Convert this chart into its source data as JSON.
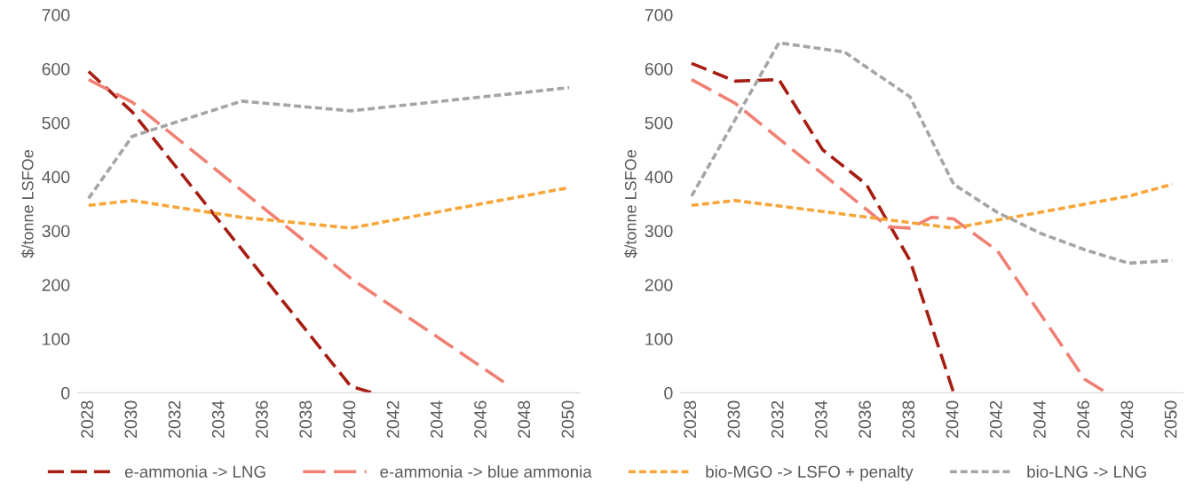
{
  "chart_data": [
    {
      "type": "line",
      "ylabel": "$/tonne LSFOe",
      "xlim": [
        2027.5,
        2050.5
      ],
      "xticks": [
        2028,
        2030,
        2032,
        2034,
        2036,
        2038,
        2040,
        2042,
        2044,
        2046,
        2048,
        2050
      ],
      "ylim": [
        0,
        700
      ],
      "yticks": [
        0,
        100,
        200,
        300,
        400,
        500,
        600,
        700
      ],
      "grid": false,
      "legend": "bottom",
      "line_style": "dashed",
      "marker": "none",
      "series": [
        {
          "name": "e-ammonia -> LNG",
          "color": "#a61d12",
          "x": [
            2028,
            2030,
            2040,
            2041
          ],
          "values": [
            595,
            520,
            12,
            0
          ]
        },
        {
          "name": "e-ammonia -> blue ammonia",
          "color": "#f08074",
          "x": [
            2028,
            2030,
            2040,
            2047
          ],
          "values": [
            580,
            538,
            212,
            20
          ]
        },
        {
          "name": "bio-MGO -> LSFO + penalty",
          "color": "#f7a538",
          "x": [
            2028,
            2030,
            2035,
            2040,
            2050
          ],
          "values": [
            347,
            356,
            325,
            305,
            380
          ]
        },
        {
          "name": "bio-LNG -> LNG",
          "color": "#a5a5a5",
          "x": [
            2028,
            2030,
            2035,
            2040,
            2050
          ],
          "values": [
            360,
            475,
            540,
            522,
            565
          ]
        }
      ]
    },
    {
      "type": "line",
      "ylabel": "$/tonne LSFOe",
      "xlim": [
        2027.5,
        2050.5
      ],
      "xticks": [
        2028,
        2030,
        2032,
        2034,
        2036,
        2038,
        2040,
        2042,
        2044,
        2046,
        2048,
        2050
      ],
      "ylim": [
        0,
        700
      ],
      "yticks": [
        0,
        100,
        200,
        300,
        400,
        500,
        600,
        700
      ],
      "grid": false,
      "line_style": "dashed",
      "marker": "none",
      "series": [
        {
          "color": "#a61d12",
          "x": [
            2028,
            2030,
            2032,
            2034,
            2036,
            2038,
            2040
          ],
          "values": [
            610,
            577,
            580,
            450,
            386,
            245,
            0
          ]
        },
        {
          "color": "#f08074",
          "x": [
            2028,
            2030,
            2037,
            2038,
            2039,
            2040,
            2042,
            2046,
            2047
          ],
          "values": [
            580,
            536,
            307,
            305,
            325,
            322,
            263,
            25,
            0
          ]
        },
        {
          "color": "#f7a538",
          "x": [
            2028,
            2030,
            2040,
            2048,
            2050
          ],
          "values": [
            347,
            356,
            305,
            364,
            386
          ]
        },
        {
          "color": "#a5a5a5",
          "x": [
            2028,
            2032,
            2035,
            2038,
            2040,
            2042,
            2044,
            2046,
            2048,
            2050
          ],
          "values": [
            364,
            648,
            631,
            548,
            386,
            334,
            295,
            265,
            240,
            245
          ]
        }
      ]
    }
  ]
}
